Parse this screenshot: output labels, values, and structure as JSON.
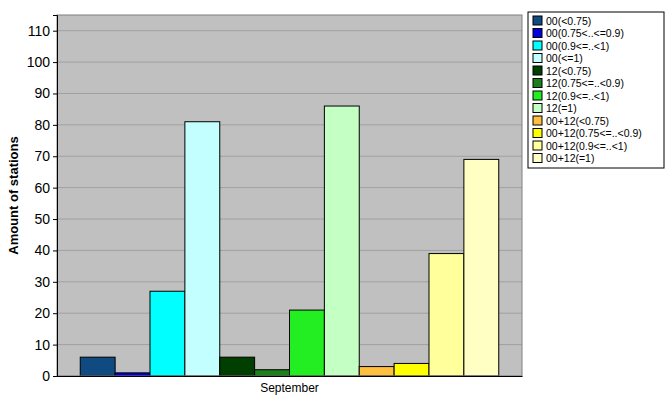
{
  "chart_data": {
    "type": "bar",
    "y_label": "Amount of stations",
    "categories": [
      "September"
    ],
    "series": [
      {
        "name": "00(<0.75)",
        "color": "#0f4a80",
        "values": [
          6
        ]
      },
      {
        "name": "00(0.75<..<=0.9)",
        "color": "#0000e0",
        "values": [
          1
        ]
      },
      {
        "name": "00(0.9<=..<1)",
        "color": "#00ffff",
        "values": [
          27
        ]
      },
      {
        "name": "00(<=1)",
        "color": "#c4ffff",
        "values": [
          81
        ]
      },
      {
        "name": "12(<0.75)",
        "color": "#003f00",
        "values": [
          6
        ]
      },
      {
        "name": "12(0.75<=..<0.9)",
        "color": "#1a801a",
        "values": [
          2
        ]
      },
      {
        "name": "12(0.9<=..<1)",
        "color": "#22ee22",
        "values": [
          21
        ]
      },
      {
        "name": "12(=1)",
        "color": "#c4ffc4",
        "values": [
          86
        ]
      },
      {
        "name": "00+12(<0.75)",
        "color": "#ffc040",
        "values": [
          3
        ]
      },
      {
        "name": "00+12(0.75<=..<0.9)",
        "color": "#ffff00",
        "values": [
          4
        ]
      },
      {
        "name": "00+12(0.9<=..<1)",
        "color": "#ffff9c",
        "values": [
          39
        ]
      },
      {
        "name": "00+12(=1)",
        "color": "#ffffc4",
        "values": [
          69
        ]
      }
    ],
    "ylim": [
      0,
      115
    ],
    "yticks": [
      0,
      10,
      20,
      30,
      40,
      50,
      60,
      70,
      80,
      90,
      100,
      110
    ],
    "grid": true,
    "legend": "right"
  }
}
